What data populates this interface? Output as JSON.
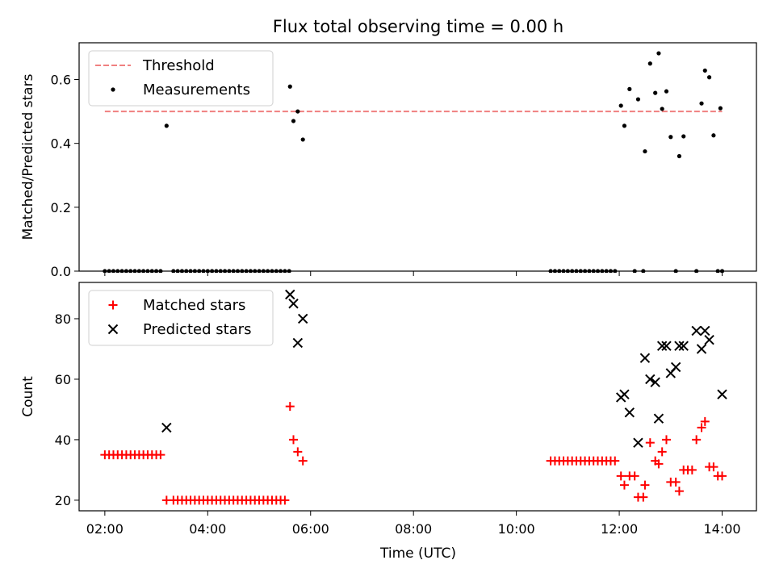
{
  "title": "Flux total observing time = 0.00 h",
  "xlabel": "Time (UTC)",
  "x_ticks": [
    "02:00",
    "04:00",
    "06:00",
    "08:00",
    "10:00",
    "12:00",
    "14:00"
  ],
  "chart_data": [
    {
      "type": "scatter",
      "ylabel": "Matched/Predicted stars",
      "xlim": [
        "01:30",
        "14:40"
      ],
      "ylim": [
        0,
        0.715
      ],
      "y_ticks": [
        "0.0",
        "0.2",
        "0.4",
        "0.6"
      ],
      "legend_position": "upper left",
      "threshold": {
        "name": "Threshold",
        "style": "dashed",
        "color": "#f08080",
        "y": 0.5,
        "x_start": "02:00",
        "x_end": "14:00"
      },
      "series": [
        {
          "name": "Measurements",
          "marker": "dot",
          "color": "#000000",
          "points": [
            [
              "02:00",
              0
            ],
            [
              "02:05",
              0
            ],
            [
              "02:10",
              0
            ],
            [
              "02:15",
              0
            ],
            [
              "02:20",
              0
            ],
            [
              "02:25",
              0
            ],
            [
              "02:30",
              0
            ],
            [
              "02:35",
              0
            ],
            [
              "02:40",
              0
            ],
            [
              "02:45",
              0
            ],
            [
              "02:50",
              0
            ],
            [
              "02:55",
              0
            ],
            [
              "03:00",
              0
            ],
            [
              "03:05",
              0
            ],
            [
              "03:12",
              0.455
            ],
            [
              "03:20",
              0
            ],
            [
              "03:25",
              0
            ],
            [
              "03:30",
              0
            ],
            [
              "03:35",
              0
            ],
            [
              "03:40",
              0
            ],
            [
              "03:45",
              0
            ],
            [
              "03:50",
              0
            ],
            [
              "03:55",
              0
            ],
            [
              "04:00",
              0
            ],
            [
              "04:05",
              0
            ],
            [
              "04:10",
              0
            ],
            [
              "04:15",
              0
            ],
            [
              "04:20",
              0
            ],
            [
              "04:25",
              0
            ],
            [
              "04:30",
              0
            ],
            [
              "04:35",
              0
            ],
            [
              "04:40",
              0
            ],
            [
              "04:45",
              0
            ],
            [
              "04:50",
              0
            ],
            [
              "04:55",
              0
            ],
            [
              "05:00",
              0
            ],
            [
              "05:05",
              0
            ],
            [
              "05:10",
              0
            ],
            [
              "05:15",
              0
            ],
            [
              "05:20",
              0
            ],
            [
              "05:25",
              0
            ],
            [
              "05:30",
              0
            ],
            [
              "05:35",
              0
            ],
            [
              "05:36",
              0.578
            ],
            [
              "05:40",
              0.47
            ],
            [
              "05:45",
              0.5
            ],
            [
              "05:51",
              0.412
            ],
            [
              "10:40",
              0
            ],
            [
              "10:45",
              0
            ],
            [
              "10:50",
              0
            ],
            [
              "10:55",
              0
            ],
            [
              "11:00",
              0
            ],
            [
              "11:05",
              0
            ],
            [
              "11:10",
              0
            ],
            [
              "11:15",
              0
            ],
            [
              "11:20",
              0
            ],
            [
              "11:25",
              0
            ],
            [
              "11:30",
              0
            ],
            [
              "11:35",
              0
            ],
            [
              "11:40",
              0
            ],
            [
              "11:45",
              0
            ],
            [
              "11:50",
              0
            ],
            [
              "11:55",
              0
            ],
            [
              "12:02",
              0.518
            ],
            [
              "12:06",
              0.455
            ],
            [
              "12:12",
              0.57
            ],
            [
              "12:18",
              0
            ],
            [
              "12:22",
              0.538
            ],
            [
              "12:28",
              0
            ],
            [
              "12:30",
              0.375
            ],
            [
              "12:36",
              0.65
            ],
            [
              "12:42",
              0.558
            ],
            [
              "12:46",
              0.682
            ],
            [
              "12:50",
              0.508
            ],
            [
              "12:55",
              0.563
            ],
            [
              "13:00",
              0.42
            ],
            [
              "13:06",
              0
            ],
            [
              "13:10",
              0.36
            ],
            [
              "13:15",
              0.422
            ],
            [
              "13:30",
              0
            ],
            [
              "13:36",
              0.525
            ],
            [
              "13:40",
              0.628
            ],
            [
              "13:45",
              0.607
            ],
            [
              "13:50",
              0.425
            ],
            [
              "13:55",
              0
            ],
            [
              "13:58",
              0.51
            ],
            [
              "14:00",
              0
            ]
          ]
        }
      ]
    },
    {
      "type": "scatter",
      "ylabel": "Count",
      "xlim": [
        "01:30",
        "14:40"
      ],
      "ylim": [
        16.5,
        92
      ],
      "y_ticks": [
        "20",
        "40",
        "60",
        "80"
      ],
      "legend_position": "upper left",
      "series": [
        {
          "name": "Matched stars",
          "marker": "plus",
          "color": "#ff0000",
          "points": [
            [
              "02:00",
              35
            ],
            [
              "02:05",
              35
            ],
            [
              "02:10",
              35
            ],
            [
              "02:15",
              35
            ],
            [
              "02:20",
              35
            ],
            [
              "02:25",
              35
            ],
            [
              "02:30",
              35
            ],
            [
              "02:35",
              35
            ],
            [
              "02:40",
              35
            ],
            [
              "02:45",
              35
            ],
            [
              "02:50",
              35
            ],
            [
              "02:55",
              35
            ],
            [
              "03:00",
              35
            ],
            [
              "03:05",
              35
            ],
            [
              "03:12",
              20
            ],
            [
              "03:20",
              20
            ],
            [
              "03:25",
              20
            ],
            [
              "03:30",
              20
            ],
            [
              "03:35",
              20
            ],
            [
              "03:40",
              20
            ],
            [
              "03:45",
              20
            ],
            [
              "03:50",
              20
            ],
            [
              "03:55",
              20
            ],
            [
              "04:00",
              20
            ],
            [
              "04:05",
              20
            ],
            [
              "04:10",
              20
            ],
            [
              "04:15",
              20
            ],
            [
              "04:20",
              20
            ],
            [
              "04:25",
              20
            ],
            [
              "04:30",
              20
            ],
            [
              "04:35",
              20
            ],
            [
              "04:40",
              20
            ],
            [
              "04:45",
              20
            ],
            [
              "04:50",
              20
            ],
            [
              "04:55",
              20
            ],
            [
              "05:00",
              20
            ],
            [
              "05:05",
              20
            ],
            [
              "05:10",
              20
            ],
            [
              "05:15",
              20
            ],
            [
              "05:20",
              20
            ],
            [
              "05:25",
              20
            ],
            [
              "05:30",
              20
            ],
            [
              "05:36",
              51
            ],
            [
              "05:40",
              40
            ],
            [
              "05:45",
              36
            ],
            [
              "05:51",
              33
            ],
            [
              "10:40",
              33
            ],
            [
              "10:45",
              33
            ],
            [
              "10:50",
              33
            ],
            [
              "10:55",
              33
            ],
            [
              "11:00",
              33
            ],
            [
              "11:05",
              33
            ],
            [
              "11:10",
              33
            ],
            [
              "11:15",
              33
            ],
            [
              "11:20",
              33
            ],
            [
              "11:25",
              33
            ],
            [
              "11:30",
              33
            ],
            [
              "11:35",
              33
            ],
            [
              "11:40",
              33
            ],
            [
              "11:45",
              33
            ],
            [
              "11:50",
              33
            ],
            [
              "11:55",
              33
            ],
            [
              "12:02",
              28
            ],
            [
              "12:06",
              25
            ],
            [
              "12:12",
              28
            ],
            [
              "12:18",
              28
            ],
            [
              "12:22",
              21
            ],
            [
              "12:28",
              21
            ],
            [
              "12:30",
              25
            ],
            [
              "12:36",
              39
            ],
            [
              "12:42",
              33
            ],
            [
              "12:46",
              32
            ],
            [
              "12:50",
              36
            ],
            [
              "12:55",
              40
            ],
            [
              "13:00",
              26
            ],
            [
              "13:06",
              26
            ],
            [
              "13:10",
              23
            ],
            [
              "13:15",
              30
            ],
            [
              "13:20",
              30
            ],
            [
              "13:25",
              30
            ],
            [
              "13:30",
              40
            ],
            [
              "13:36",
              44
            ],
            [
              "13:40",
              46
            ],
            [
              "13:45",
              31
            ],
            [
              "13:50",
              31
            ],
            [
              "13:55",
              28
            ],
            [
              "14:00",
              28
            ]
          ]
        },
        {
          "name": "Predicted stars",
          "marker": "x",
          "color": "#000000",
          "points": [
            [
              "03:12",
              44
            ],
            [
              "05:36",
              88
            ],
            [
              "05:40",
              85
            ],
            [
              "05:45",
              72
            ],
            [
              "05:51",
              80
            ],
            [
              "12:02",
              54
            ],
            [
              "12:06",
              55
            ],
            [
              "12:12",
              49
            ],
            [
              "12:22",
              39
            ],
            [
              "12:30",
              67
            ],
            [
              "12:36",
              60
            ],
            [
              "12:42",
              59
            ],
            [
              "12:46",
              47
            ],
            [
              "12:50",
              71
            ],
            [
              "12:55",
              71
            ],
            [
              "13:00",
              62
            ],
            [
              "13:06",
              64
            ],
            [
              "13:10",
              71
            ],
            [
              "13:15",
              71
            ],
            [
              "13:30",
              76
            ],
            [
              "13:36",
              70
            ],
            [
              "13:40",
              76
            ],
            [
              "13:45",
              73
            ],
            [
              "14:00",
              55
            ]
          ]
        }
      ]
    }
  ]
}
